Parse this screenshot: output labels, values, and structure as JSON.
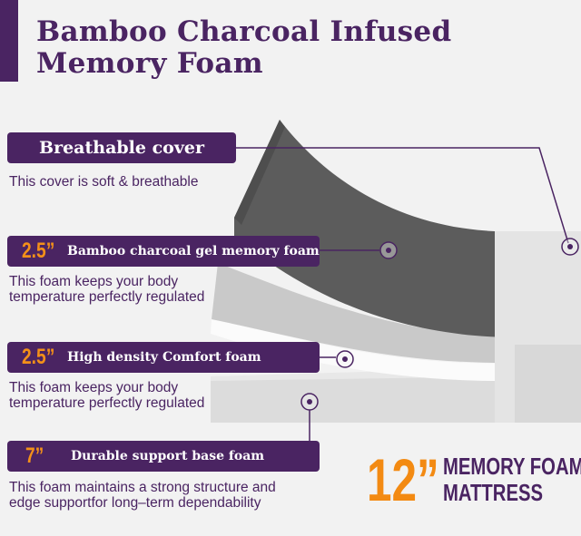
{
  "title": {
    "line1": "Bamboo Charcoal Infused",
    "line2": "Memory Foam"
  },
  "layers": [
    {
      "thickness": "",
      "label": "Breathable cover",
      "description": [
        "This cover is soft & breathable"
      ]
    },
    {
      "thickness": "2.5”",
      "label": "Bamboo charcoal gel  memory foam",
      "description": [
        "This foam keeps your body",
        "temperature perfectly regulated"
      ]
    },
    {
      "thickness": "2.5”",
      "label": "High density Comfort foam",
      "description": [
        "This foam keeps your body",
        "temperature perfectly regulated"
      ]
    },
    {
      "thickness": "7”",
      "label": "Durable support base foam",
      "description": [
        "This foam maintains a strong structure and",
        "edge supportfor long–term dependability"
      ]
    }
  ],
  "summary": {
    "size": "12”",
    "line1": "MEMORY FOAM",
    "line2": "MATTRESS"
  },
  "colors": {
    "purple": "#4a2462",
    "orange": "#f38a12",
    "background": "#f2f2f2"
  }
}
